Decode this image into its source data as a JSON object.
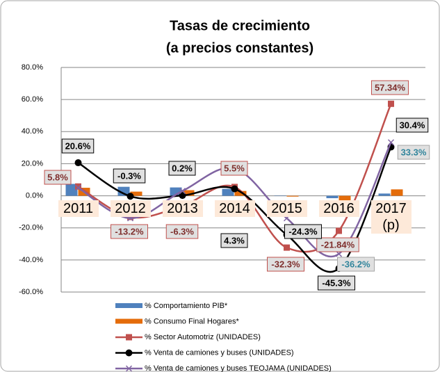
{
  "chart_data": {
    "type": "combo",
    "title": "Tasas de crecimiento",
    "subtitle": "(a precios constantes)",
    "categories": [
      "2011",
      "2012",
      "2013",
      "2014",
      "2015",
      "2016",
      "2017 (p)"
    ],
    "ylim": [
      -60,
      80
    ],
    "yticks": [
      {
        "value": -60,
        "label": "-60.0%"
      },
      {
        "value": -40,
        "label": "-40.0%"
      },
      {
        "value": -20,
        "label": "-20.0%"
      },
      {
        "value": 0,
        "label": "0.0%"
      },
      {
        "value": 20,
        "label": "20.0%"
      },
      {
        "value": 40,
        "label": "40.0%"
      },
      {
        "value": 60,
        "label": "60.0%"
      },
      {
        "value": 80,
        "label": "80.0%"
      }
    ],
    "grid": true,
    "legend": "bottom",
    "series": [
      {
        "name": "% Comportamiento PIB*",
        "type": "bar",
        "color": "#4f81bd",
        "values": [
          7.4,
          5.6,
          5.2,
          4.3,
          0.2,
          -1.5,
          1.4
        ]
      },
      {
        "name": "% Consumo Final Hogares*",
        "type": "bar",
        "color": "#e46c0a",
        "values": [
          5.0,
          2.6,
          3.5,
          3.0,
          -0.5,
          -3.5,
          4.0
        ]
      },
      {
        "name": "% Sector Automotriz (UNIDADES)",
        "type": "line",
        "marker": "square",
        "color": "#c0504d",
        "values": [
          5.8,
          -13.2,
          -6.3,
          5.5,
          -32.3,
          -21.84,
          57.34
        ],
        "value_labels": [
          "5.8%",
          "-13.2%",
          "-6.3%",
          "5.5%",
          "-32.3%",
          "-21.84%",
          "57.34%"
        ]
      },
      {
        "name": "% Venta de camiones y buses (UNIDADES)",
        "type": "line",
        "marker": "circle",
        "color": "#000000",
        "values": [
          20.6,
          -0.3,
          0.2,
          4.3,
          -24.3,
          -45.3,
          30.4
        ],
        "value_labels": [
          "20.6%",
          "-0.3%",
          "0.2%",
          "4.3%",
          "-24.3%",
          "-45.3%",
          "30.4%"
        ]
      },
      {
        "name": "% Venta de camiones y buses TEOJAMA  (UNIDADES)",
        "type": "line",
        "marker": "x",
        "color": "#8064a2",
        "values": [
          5.0,
          -14.0,
          3.0,
          17.0,
          -14.0,
          -36.2,
          33.3
        ],
        "value_labels": [
          null,
          null,
          null,
          null,
          null,
          "-36.2%",
          "33.3%"
        ]
      }
    ]
  }
}
